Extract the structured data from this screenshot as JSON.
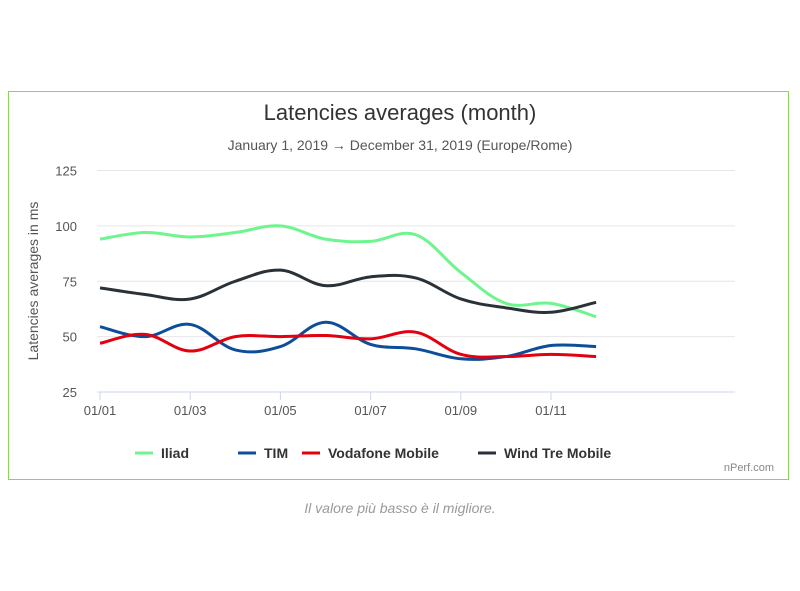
{
  "chart_data": {
    "type": "line",
    "title": "Latencies averages (month)",
    "subtitle": "January 1, 2019 → December 31, 2019 (Europe/Rome)",
    "xlabel": "",
    "ylabel": "Latencies averages in ms",
    "x": [
      "2019-01",
      "2019-02",
      "2019-03",
      "2019-04",
      "2019-05",
      "2019-06",
      "2019-07",
      "2019-08",
      "2019-09",
      "2019-10",
      "2019-11",
      "2019-12"
    ],
    "x_tick_labels": [
      "01/01",
      "01/03",
      "01/05",
      "01/07",
      "01/09",
      "01/11"
    ],
    "y_ticks": [
      25,
      50,
      75,
      100,
      125
    ],
    "ylim": [
      25,
      125
    ],
    "grid": true,
    "legend_position": "bottom",
    "series": [
      {
        "name": "Iliad",
        "color": "#6ef58d",
        "values": [
          94,
          97,
          95,
          97,
          100,
          94,
          93,
          96,
          79,
          65,
          65,
          59
        ]
      },
      {
        "name": "TIM",
        "color": "#0d4d99",
        "values": [
          54.5,
          50,
          55.5,
          44,
          45.5,
          56.5,
          46.5,
          44.5,
          40,
          41,
          46,
          45.5
        ]
      },
      {
        "name": "Vodafone Mobile",
        "color": "#e3000f",
        "values": [
          47,
          51,
          43.5,
          50,
          50,
          50.5,
          49,
          52,
          42,
          41,
          42,
          41
        ]
      },
      {
        "name": "Wind Tre Mobile",
        "color": "#2a3238",
        "values": [
          72,
          69,
          67,
          75,
          80,
          73,
          77,
          76.5,
          67,
          63,
          61,
          65.5
        ]
      }
    ]
  },
  "credit": "nPerf.com",
  "note": "Il valore più basso è il migliore."
}
